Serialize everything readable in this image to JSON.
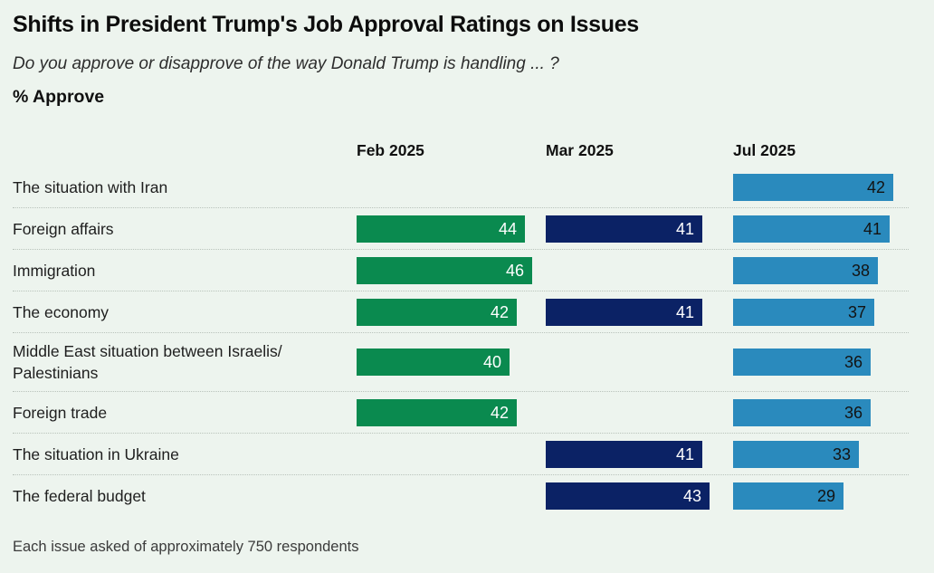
{
  "header": {
    "title": "Shifts in President Trump's Job Approval Ratings on Issues",
    "subtitle": "Do you approve or disapprove of the way Donald Trump is handling ... ?",
    "measure_label": "% Approve"
  },
  "chart_data": {
    "type": "bar",
    "orientation": "horizontal",
    "title": "Shifts in President Trump's Job Approval Ratings on Issues",
    "subtitle": "Do you approve or disapprove of the way Donald Trump is handling ... ?",
    "value_label": "% Approve",
    "legend_position": "column-headers",
    "grid": "dotted-row-separators",
    "value_range": [
      0,
      47
    ],
    "categories": [
      "The situation with Iran",
      "Foreign affairs",
      "Immigration",
      "The economy",
      "Middle East situation between Israelis/Palestinians",
      "Foreign trade",
      "The situation in Ukraine",
      "The federal budget"
    ],
    "columns": [
      {
        "label": "Feb 2025",
        "color": "#0a8a4f",
        "text_color": "#ffffff"
      },
      {
        "label": "Mar 2025",
        "color": "#0b2265",
        "text_color": "#ffffff"
      },
      {
        "label": "Jul 2025",
        "color": "#2a8abd",
        "text_color": "#131313"
      }
    ],
    "series": [
      {
        "name": "Feb 2025",
        "values": [
          null,
          44,
          46,
          42,
          40,
          42,
          null,
          null
        ]
      },
      {
        "name": "Mar 2025",
        "values": [
          null,
          41,
          null,
          41,
          null,
          null,
          41,
          43
        ]
      },
      {
        "name": "Jul 2025",
        "values": [
          42,
          41,
          38,
          37,
          36,
          36,
          33,
          29
        ]
      }
    ]
  },
  "footer": {
    "note": "Each issue asked of approximately 750 respondents"
  }
}
